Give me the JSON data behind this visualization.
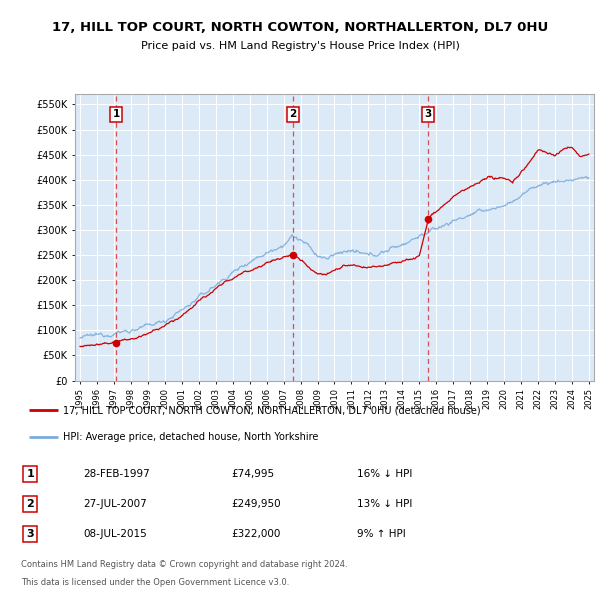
{
  "title": "17, HILL TOP COURT, NORTH COWTON, NORTHALLERTON, DL7 0HU",
  "subtitle": "Price paid vs. HM Land Registry's House Price Index (HPI)",
  "bg_color": "#dce9f7",
  "hpi_color": "#7aaddd",
  "price_color": "#cc0000",
  "legend_label_price": "17, HILL TOP COURT, NORTH COWTON, NORTHALLERTON, DL7 0HU (detached house)",
  "legend_label_hpi": "HPI: Average price, detached house, North Yorkshire",
  "transactions": [
    {
      "num": 1,
      "date": "28-FEB-1997",
      "price": 74995,
      "year": 1997.12,
      "hpi_rel": "16% ↓ HPI"
    },
    {
      "num": 2,
      "date": "27-JUL-2007",
      "price": 249950,
      "year": 2007.56,
      "hpi_rel": "13% ↓ HPI"
    },
    {
      "num": 3,
      "date": "08-JUL-2015",
      "price": 322000,
      "year": 2015.52,
      "hpi_rel": "9% ↑ HPI"
    }
  ],
  "footer1": "Contains HM Land Registry data © Crown copyright and database right 2024.",
  "footer2": "This data is licensed under the Open Government Licence v3.0.",
  "ylim": [
    0,
    570000
  ],
  "yticks": [
    0,
    50000,
    100000,
    150000,
    200000,
    250000,
    300000,
    350000,
    400000,
    450000,
    500000,
    550000
  ],
  "ytick_labels": [
    "£0",
    "£50K",
    "£100K",
    "£150K",
    "£200K",
    "£250K",
    "£300K",
    "£350K",
    "£400K",
    "£450K",
    "£500K",
    "£550K"
  ]
}
